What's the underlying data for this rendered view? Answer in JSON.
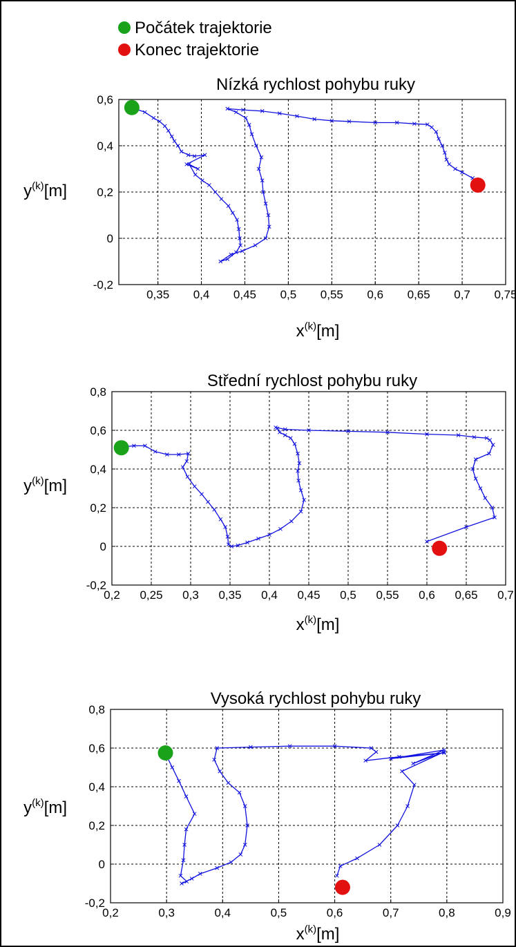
{
  "legend": {
    "items": [
      {
        "label": "Počátek trajektorie",
        "color": "#1aa31a"
      },
      {
        "label": "Konec trajektorie",
        "color": "#e31010"
      }
    ]
  },
  "line_color": "#1010e0",
  "chart_data": [
    {
      "type": "line",
      "title": "Nízká rychlost pohybu ruky",
      "xlabel": "x",
      "xlabel_sup": "(k)",
      "xlabel_unit": "[m]",
      "ylabel": "y",
      "ylabel_sup": "(k)",
      "ylabel_unit": "[m]",
      "xlim": [
        0.305,
        0.75
      ],
      "ylim": [
        -0.2,
        0.6
      ],
      "x_ticks": [
        0.35,
        0.4,
        0.45,
        0.5,
        0.55,
        0.6,
        0.65,
        0.7,
        0.75
      ],
      "x_tick_labels": [
        "0,35",
        "0,4",
        "0,45",
        "0,5",
        "0,55",
        "0,6",
        "0,65",
        "0,7",
        "0,75"
      ],
      "y_ticks": [
        -0.2,
        0,
        0.2,
        0.4,
        0.6
      ],
      "y_tick_labels": [
        "-0,2",
        "0",
        "0,2",
        "0,4",
        "0,6"
      ],
      "grid": true,
      "start": [
        0.32,
        0.565
      ],
      "end": [
        0.718,
        0.23
      ],
      "series": [
        {
          "x": [
            0.322,
            0.335,
            0.345,
            0.352,
            0.358,
            0.362,
            0.366,
            0.369,
            0.373,
            0.377,
            0.385,
            0.392,
            0.404,
            0.383,
            0.396,
            0.386,
            0.393,
            0.401,
            0.409,
            0.416,
            0.423,
            0.431,
            0.436,
            0.441,
            0.443,
            0.444,
            0.445,
            0.44,
            0.43,
            0.422,
            0.434,
            0.447,
            0.462,
            0.474,
            0.478,
            0.477,
            0.474,
            0.471,
            0.47,
            0.466,
            0.469,
            0.463,
            0.458,
            0.455,
            0.451,
            0.44,
            0.43,
            0.448,
            0.47,
            0.49,
            0.51,
            0.53,
            0.55,
            0.57,
            0.6,
            0.625,
            0.645,
            0.66,
            0.665,
            0.67,
            0.673,
            0.677,
            0.68,
            0.682,
            0.685,
            0.692,
            0.7,
            0.712,
            0.718
          ],
          "y": [
            0.562,
            0.545,
            0.52,
            0.505,
            0.485,
            0.465,
            0.44,
            0.42,
            0.4,
            0.375,
            0.36,
            0.355,
            0.36,
            0.32,
            0.3,
            0.32,
            0.275,
            0.25,
            0.23,
            0.2,
            0.17,
            0.14,
            0.11,
            0.08,
            0.04,
            0.0,
            -0.03,
            -0.06,
            -0.09,
            -0.1,
            -0.07,
            -0.055,
            -0.03,
            0.0,
            0.05,
            0.1,
            0.15,
            0.2,
            0.25,
            0.3,
            0.35,
            0.4,
            0.45,
            0.49,
            0.52,
            0.545,
            0.56,
            0.555,
            0.55,
            0.54,
            0.528,
            0.515,
            0.508,
            0.505,
            0.5,
            0.5,
            0.495,
            0.492,
            0.48,
            0.46,
            0.43,
            0.4,
            0.37,
            0.34,
            0.32,
            0.3,
            0.285,
            0.26,
            0.23
          ]
        }
      ]
    },
    {
      "type": "line",
      "title": "Střední rychlost pohybu ruky",
      "xlabel": "x",
      "xlabel_sup": "(k)",
      "xlabel_unit": "[m]",
      "ylabel": "y",
      "ylabel_sup": "(k)",
      "ylabel_unit": "[m]",
      "xlim": [
        0.2,
        0.7
      ],
      "ylim": [
        -0.2,
        0.8
      ],
      "x_ticks": [
        0.2,
        0.25,
        0.3,
        0.35,
        0.4,
        0.45,
        0.5,
        0.55,
        0.6,
        0.65,
        0.7
      ],
      "x_tick_labels": [
        "0,2",
        "0,25",
        "0,3",
        "0,35",
        "0,4",
        "0,45",
        "0,5",
        "0,55",
        "0,6",
        "0,65",
        "0,7"
      ],
      "y_ticks": [
        -0.2,
        0,
        0.2,
        0.4,
        0.6,
        0.8
      ],
      "y_tick_labels": [
        "-0,2",
        "0",
        "0,2",
        "0,4",
        "0,6",
        "0,8"
      ],
      "grid": true,
      "start": [
        0.212,
        0.51
      ],
      "end": [
        0.616,
        -0.01
      ],
      "series": [
        {
          "x": [
            0.215,
            0.228,
            0.242,
            0.255,
            0.27,
            0.285,
            0.297,
            0.295,
            0.29,
            0.296,
            0.305,
            0.314,
            0.322,
            0.33,
            0.338,
            0.344,
            0.347,
            0.348,
            0.352,
            0.36,
            0.372,
            0.386,
            0.4,
            0.414,
            0.428,
            0.44,
            0.444,
            0.44,
            0.437,
            0.436,
            0.438,
            0.436,
            0.432,
            0.427,
            0.42,
            0.413,
            0.41,
            0.408,
            0.42,
            0.45,
            0.5,
            0.55,
            0.6,
            0.64,
            0.66,
            0.676,
            0.68,
            0.684,
            0.679,
            0.662,
            0.658,
            0.662,
            0.668,
            0.674,
            0.683,
            0.686,
            0.65,
            0.6
          ],
          "y": [
            0.515,
            0.52,
            0.52,
            0.49,
            0.475,
            0.475,
            0.48,
            0.44,
            0.41,
            0.36,
            0.31,
            0.27,
            0.23,
            0.19,
            0.14,
            0.1,
            0.05,
            0.01,
            0.0,
            0.005,
            0.02,
            0.04,
            0.06,
            0.09,
            0.13,
            0.18,
            0.24,
            0.29,
            0.34,
            0.39,
            0.43,
            0.48,
            0.53,
            0.56,
            0.575,
            0.59,
            0.61,
            0.615,
            0.605,
            0.6,
            0.595,
            0.59,
            0.58,
            0.575,
            0.565,
            0.56,
            0.55,
            0.525,
            0.48,
            0.45,
            0.4,
            0.35,
            0.3,
            0.25,
            0.2,
            0.15,
            0.1,
            0.025
          ]
        }
      ]
    },
    {
      "type": "line",
      "title": "Vysoká rychlost pohybu ruky",
      "xlabel": "x",
      "xlabel_sup": "(k)",
      "xlabel_unit": "[m]",
      "ylabel": "y",
      "ylabel_sup": "(k)",
      "ylabel_unit": "[m]",
      "xlim": [
        0.2,
        0.9
      ],
      "ylim": [
        -0.2,
        0.8
      ],
      "x_ticks": [
        0.2,
        0.3,
        0.4,
        0.5,
        0.6,
        0.7,
        0.8,
        0.9
      ],
      "x_tick_labels": [
        "0,2",
        "0,3",
        "0,4",
        "0,5",
        "0,6",
        "0,7",
        "0,8",
        "0,9"
      ],
      "y_ticks": [
        -0.2,
        0,
        0.2,
        0.4,
        0.6,
        0.8
      ],
      "y_tick_labels": [
        "-0,2",
        "0",
        "0,2",
        "0,4",
        "0,6",
        "0,8"
      ],
      "grid": true,
      "start": [
        0.298,
        0.575
      ],
      "end": [
        0.614,
        -0.12
      ],
      "series": [
        {
          "x": [
            0.3,
            0.31,
            0.322,
            0.335,
            0.35,
            0.335,
            0.332,
            0.33,
            0.325,
            0.336,
            0.327,
            0.345,
            0.36,
            0.39,
            0.415,
            0.432,
            0.44,
            0.444,
            0.44,
            0.43,
            0.41,
            0.395,
            0.385,
            0.39,
            0.45,
            0.52,
            0.6,
            0.665,
            0.674,
            0.655,
            0.715,
            0.795,
            0.7,
            0.795,
            0.74,
            0.795,
            0.72,
            0.742,
            0.73,
            0.712,
            0.68,
            0.64,
            0.61,
            0.604
          ],
          "y": [
            0.56,
            0.5,
            0.43,
            0.35,
            0.26,
            0.18,
            0.1,
            0.02,
            -0.06,
            -0.09,
            -0.1,
            -0.075,
            -0.05,
            -0.02,
            0.01,
            0.05,
            0.1,
            0.2,
            0.3,
            0.37,
            0.42,
            0.48,
            0.54,
            0.6,
            0.605,
            0.61,
            0.61,
            0.6,
            0.58,
            0.535,
            0.555,
            0.575,
            0.545,
            0.59,
            0.52,
            0.58,
            0.48,
            0.41,
            0.3,
            0.2,
            0.1,
            0.03,
            -0.01,
            -0.06
          ]
        }
      ]
    }
  ]
}
